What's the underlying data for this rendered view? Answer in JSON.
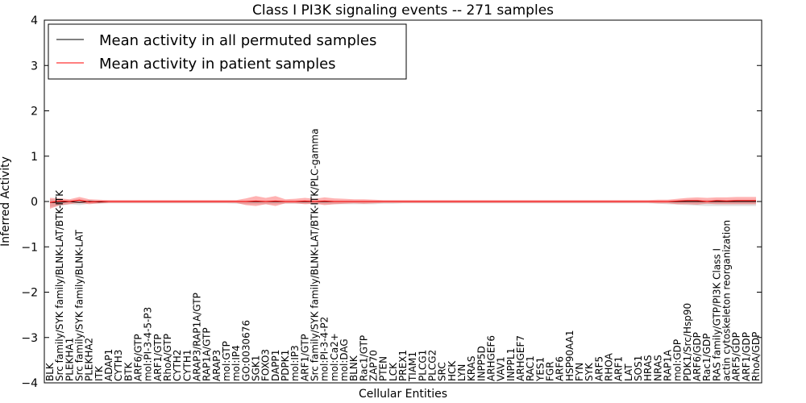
{
  "chart_data": {
    "type": "line",
    "title": "Class I PI3K signaling events -- 271 samples",
    "xlabel": "Cellular Entities",
    "ylabel": "Inferred Activity",
    "ylim": [
      -4,
      4
    ],
    "yticks": [
      -4,
      -3,
      -2,
      -1,
      0,
      1,
      2,
      3,
      4
    ],
    "ytick_labels": [
      "−4",
      "−3",
      "−2",
      "−1",
      "0",
      "1",
      "2",
      "3",
      "4"
    ],
    "legend": {
      "position": "top-left",
      "entries": [
        {
          "label": "Mean activity in all permuted samples",
          "color": "#000000"
        },
        {
          "label": "Mean activity in patient samples",
          "color": "#ff0000"
        }
      ]
    },
    "categories": [
      "BLK",
      "Src family/SYK family/BLNK-LAT/BTK-ITK",
      "PLEKHA1",
      "Src family/SYK family/BLNK-LAT",
      "PLEKHA2",
      "ITK",
      "ADAP1",
      "CYTH3",
      "BTK",
      "ARF6/GTP",
      "mol:PI-3-4-5-P3",
      "ARF1/GTP",
      "RhoA/GTP",
      "CYTH2",
      "CYTH1",
      "ARAP3/RAP1A/GTP",
      "RAP1A/GTP",
      "ARAP3",
      "mol:GTP",
      "mol:IP4",
      "GO:0030676",
      "SGK1",
      "FOXO3",
      "DAPP1",
      "PDPK1",
      "mol:IP3",
      "ARF1/GTP",
      "Src family/SYK family/BLNK-LAT/BTK-ITK/PLC-gamma",
      "mol:PI-3-4-P2",
      "mol:Ca2+",
      "mol:DAG",
      "BLNK",
      "Rac1/GTP",
      "ZAP70",
      "PTEN",
      "LCK",
      "PREX1",
      "TIAM1",
      "PLCG1",
      "PLCG2",
      "SRC",
      "HCK",
      "LYN",
      "KRAS",
      "INPP5D",
      "ARHGEF6",
      "VAV1",
      "INPPL1",
      "ARHGEF7",
      "RAC1",
      "YES1",
      "FGR",
      "ARF6",
      "HSP90AA1",
      "FYN",
      "SYK",
      "ARF5",
      "RHOA",
      "ARF1",
      "LAT",
      "SOS1",
      "HRAS",
      "NRAS",
      "RAP1A",
      "mol:GDP",
      "PDK1/Src/Hsp90",
      "ARF6/GDP",
      "Rac1/GDP",
      "RAS family/GTP/PI3K Class I",
      "actin cytoskeleton reorganization",
      "ARF5/GDP",
      "ARF1/GDP",
      "RhoA/GDP"
    ],
    "series": [
      {
        "name": "Mean activity in all permuted samples",
        "color": "#000000",
        "values": [
          -0.02,
          -0.02,
          0.0,
          -0.02,
          0.0,
          -0.01,
          0.0,
          0.0,
          0.0,
          0.0,
          0.0,
          0.0,
          0.0,
          0.0,
          0.0,
          0.0,
          0.0,
          0.0,
          0.0,
          0.0,
          0.0,
          0.0,
          0.0,
          0.0,
          0.0,
          0.0,
          0.0,
          0.0,
          0.0,
          0.0,
          0.0,
          0.0,
          0.0,
          0.0,
          0.0,
          0.0,
          0.0,
          0.0,
          0.0,
          0.0,
          0.0,
          0.0,
          0.0,
          0.0,
          0.0,
          0.0,
          0.0,
          0.0,
          0.0,
          0.0,
          0.0,
          0.0,
          0.0,
          0.0,
          0.0,
          0.0,
          0.0,
          0.0,
          0.0,
          0.0,
          0.0,
          0.0,
          0.0,
          0.0,
          0.0,
          0.0,
          0.0,
          0.0,
          0.0,
          0.0,
          0.0,
          0.0,
          0.0
        ],
        "lower": [
          -0.12,
          -0.1,
          -0.06,
          -0.08,
          -0.05,
          -0.05,
          -0.04,
          -0.04,
          -0.04,
          -0.04,
          -0.04,
          -0.04,
          -0.04,
          -0.04,
          -0.04,
          -0.04,
          -0.04,
          -0.04,
          -0.04,
          -0.05,
          -0.06,
          -0.06,
          -0.06,
          -0.06,
          -0.05,
          -0.05,
          -0.05,
          -0.05,
          -0.06,
          -0.06,
          -0.06,
          -0.06,
          -0.06,
          -0.06,
          -0.05,
          -0.05,
          -0.04,
          -0.04,
          -0.04,
          -0.04,
          -0.04,
          -0.04,
          -0.04,
          -0.04,
          -0.04,
          -0.04,
          -0.04,
          -0.04,
          -0.04,
          -0.04,
          -0.04,
          -0.04,
          -0.04,
          -0.04,
          -0.04,
          -0.04,
          -0.04,
          -0.04,
          -0.04,
          -0.04,
          -0.04,
          -0.04,
          -0.05,
          -0.06,
          -0.07,
          -0.08,
          -0.09,
          -0.1,
          -0.1,
          -0.1,
          -0.1,
          -0.1,
          -0.1
        ],
        "upper": [
          0.05,
          0.04,
          0.03,
          0.04,
          0.03,
          0.02,
          0.02,
          0.02,
          0.02,
          0.02,
          0.02,
          0.02,
          0.02,
          0.02,
          0.02,
          0.02,
          0.02,
          0.02,
          0.02,
          0.02,
          0.02,
          0.02,
          0.02,
          0.02,
          0.02,
          0.02,
          0.02,
          0.02,
          0.02,
          0.02,
          0.02,
          0.02,
          0.02,
          0.02,
          0.02,
          0.02,
          0.02,
          0.02,
          0.02,
          0.02,
          0.02,
          0.02,
          0.02,
          0.02,
          0.02,
          0.02,
          0.02,
          0.02,
          0.02,
          0.02,
          0.02,
          0.02,
          0.02,
          0.02,
          0.02,
          0.02,
          0.02,
          0.02,
          0.02,
          0.02,
          0.02,
          0.02,
          0.02,
          0.02,
          0.02,
          0.03,
          0.03,
          0.03,
          0.03,
          0.03,
          0.03,
          0.03,
          0.03
        ]
      },
      {
        "name": "Mean activity in patient samples",
        "color": "#ff0000",
        "values": [
          -0.02,
          0.01,
          0.0,
          0.03,
          -0.01,
          0.0,
          0.0,
          0.0,
          0.0,
          0.0,
          0.0,
          0.0,
          0.0,
          0.0,
          0.0,
          0.0,
          0.0,
          0.0,
          0.0,
          0.0,
          0.0,
          0.01,
          0.0,
          0.01,
          0.0,
          0.0,
          0.01,
          0.0,
          0.01,
          0.0,
          0.0,
          0.0,
          0.0,
          0.0,
          0.0,
          0.0,
          0.0,
          0.0,
          0.0,
          0.0,
          0.0,
          0.0,
          0.0,
          0.0,
          0.0,
          0.0,
          0.0,
          0.0,
          0.0,
          0.0,
          0.0,
          0.0,
          0.0,
          0.0,
          0.0,
          0.0,
          0.0,
          0.0,
          0.0,
          0.0,
          0.0,
          0.0,
          0.0,
          0.0,
          0.01,
          0.02,
          0.02,
          0.0,
          0.02,
          0.01,
          0.02,
          0.02,
          0.02
        ],
        "lower": [
          -0.16,
          -0.08,
          -0.06,
          -0.03,
          -0.06,
          -0.04,
          -0.03,
          -0.03,
          -0.03,
          -0.03,
          -0.03,
          -0.03,
          -0.03,
          -0.03,
          -0.03,
          -0.03,
          -0.03,
          -0.03,
          -0.03,
          -0.03,
          -0.08,
          -0.1,
          -0.06,
          -0.1,
          -0.04,
          -0.04,
          -0.06,
          -0.05,
          -0.08,
          -0.06,
          -0.05,
          -0.04,
          -0.05,
          -0.04,
          -0.03,
          -0.03,
          -0.03,
          -0.03,
          -0.03,
          -0.03,
          -0.03,
          -0.03,
          -0.03,
          -0.03,
          -0.03,
          -0.03,
          -0.03,
          -0.03,
          -0.03,
          -0.03,
          -0.03,
          -0.03,
          -0.03,
          -0.03,
          -0.03,
          -0.03,
          -0.03,
          -0.03,
          -0.03,
          -0.03,
          -0.03,
          -0.03,
          -0.04,
          -0.04,
          -0.06,
          -0.06,
          -0.07,
          -0.05,
          -0.06,
          -0.06,
          -0.06,
          -0.06,
          -0.06
        ],
        "upper": [
          0.08,
          0.07,
          0.05,
          0.1,
          0.05,
          0.04,
          0.03,
          0.03,
          0.03,
          0.03,
          0.03,
          0.03,
          0.03,
          0.03,
          0.03,
          0.03,
          0.03,
          0.03,
          0.03,
          0.03,
          0.07,
          0.12,
          0.08,
          0.12,
          0.05,
          0.06,
          0.08,
          0.06,
          0.09,
          0.07,
          0.06,
          0.05,
          0.05,
          0.04,
          0.03,
          0.03,
          0.03,
          0.03,
          0.03,
          0.03,
          0.03,
          0.03,
          0.03,
          0.03,
          0.03,
          0.03,
          0.03,
          0.03,
          0.03,
          0.03,
          0.03,
          0.03,
          0.03,
          0.03,
          0.03,
          0.03,
          0.03,
          0.03,
          0.03,
          0.03,
          0.03,
          0.03,
          0.04,
          0.04,
          0.06,
          0.08,
          0.09,
          0.08,
          0.09,
          0.09,
          0.1,
          0.1,
          0.1
        ]
      }
    ]
  }
}
